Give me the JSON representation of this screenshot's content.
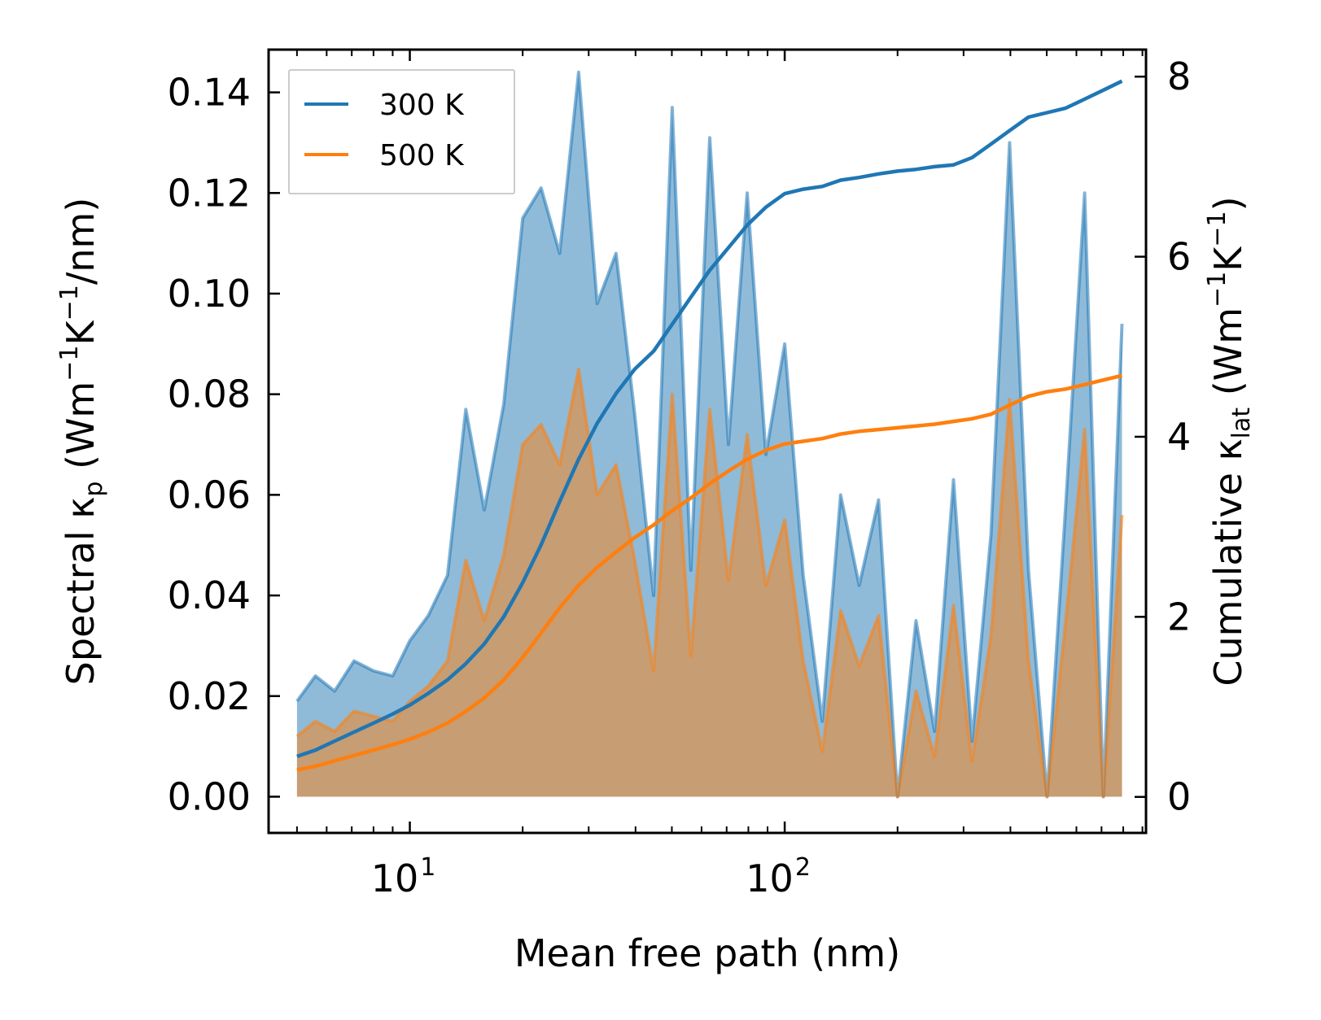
{
  "chart_data": {
    "type": "line",
    "xlabel": "Mean free path (nm)",
    "xscale": "log",
    "xlim": [
      4.2,
      920
    ],
    "x_ticks": [
      {
        "value": 10,
        "base": "10",
        "exp": "1"
      },
      {
        "value": 100,
        "base": "10",
        "exp": "2"
      }
    ],
    "left_axis": {
      "label_parts": [
        "Spectral κ",
        "p",
        " (Wm",
        "−1",
        "K",
        "−1",
        "/nm)"
      ],
      "ylim": [
        -0.0072,
        0.1485
      ],
      "ticks": [
        "0.00",
        "0.02",
        "0.04",
        "0.06",
        "0.08",
        "0.10",
        "0.12",
        "0.14"
      ]
    },
    "right_axis": {
      "label_parts": [
        "Cumulative κ",
        "lat",
        " (Wm",
        "−1",
        "K",
        "−1",
        ")"
      ],
      "ylim": [
        -0.4,
        8.3
      ],
      "ticks": [
        "0",
        "2",
        "4",
        "6",
        "8"
      ]
    },
    "legend": {
      "location": "upper-left",
      "entries": [
        {
          "label": "300 K",
          "color": "#1f77b4"
        },
        {
          "label": "500 K",
          "color": "#ff7f0e"
        }
      ]
    },
    "x": [
      5,
      5.6,
      6.3,
      7.1,
      8,
      9,
      10,
      11.2,
      12.6,
      14.1,
      15.8,
      17.8,
      20,
      22.4,
      25.1,
      28.2,
      31.6,
      35.5,
      39.8,
      44.7,
      50.1,
      56.2,
      63.1,
      70.8,
      79.4,
      89.1,
      100,
      112,
      126,
      141,
      158,
      178,
      200,
      224,
      251,
      282,
      316,
      355,
      398,
      447,
      501,
      562,
      631,
      708,
      794
    ],
    "series": [
      {
        "name": "300 K",
        "color": "#1f77b4",
        "spectral": [
          0.019,
          0.024,
          0.021,
          0.027,
          0.025,
          0.024,
          0.031,
          0.036,
          0.044,
          0.077,
          0.057,
          0.078,
          0.115,
          0.121,
          0.108,
          0.144,
          0.098,
          0.108,
          0.076,
          0.04,
          0.137,
          0.045,
          0.131,
          0.07,
          0.12,
          0.068,
          0.09,
          0.044,
          0.015,
          0.06,
          0.042,
          0.059,
          0.0,
          0.035,
          0.013,
          0.063,
          0.011,
          0.052,
          0.13,
          0.045,
          0.0,
          0.058,
          0.12,
          0.0,
          0.094
        ],
        "cumulative": [
          0.45,
          0.52,
          0.62,
          0.72,
          0.82,
          0.92,
          1.02,
          1.15,
          1.3,
          1.48,
          1.7,
          2.0,
          2.38,
          2.8,
          3.28,
          3.75,
          4.15,
          4.48,
          4.75,
          4.95,
          5.25,
          5.55,
          5.85,
          6.1,
          6.35,
          6.55,
          6.7,
          6.75,
          6.78,
          6.85,
          6.88,
          6.92,
          6.95,
          6.97,
          7.0,
          7.02,
          7.1,
          7.25,
          7.4,
          7.55,
          7.6,
          7.65,
          7.75,
          7.85,
          7.95
        ]
      },
      {
        "name": "500 K",
        "color": "#ff7f0e",
        "spectral": [
          0.012,
          0.015,
          0.013,
          0.017,
          0.016,
          0.015,
          0.019,
          0.022,
          0.027,
          0.047,
          0.035,
          0.048,
          0.07,
          0.074,
          0.066,
          0.085,
          0.06,
          0.066,
          0.047,
          0.025,
          0.08,
          0.028,
          0.077,
          0.043,
          0.072,
          0.042,
          0.055,
          0.027,
          0.009,
          0.037,
          0.026,
          0.036,
          0.0,
          0.021,
          0.008,
          0.038,
          0.007,
          0.032,
          0.079,
          0.027,
          0.0,
          0.035,
          0.073,
          0.0,
          0.056
        ],
        "cumulative": [
          0.3,
          0.34,
          0.4,
          0.46,
          0.52,
          0.58,
          0.64,
          0.72,
          0.82,
          0.95,
          1.1,
          1.3,
          1.55,
          1.82,
          2.1,
          2.35,
          2.55,
          2.72,
          2.88,
          3.02,
          3.18,
          3.32,
          3.48,
          3.62,
          3.75,
          3.85,
          3.92,
          3.95,
          3.98,
          4.03,
          4.06,
          4.08,
          4.1,
          4.12,
          4.14,
          4.17,
          4.2,
          4.25,
          4.35,
          4.45,
          4.5,
          4.53,
          4.58,
          4.63,
          4.68
        ]
      }
    ]
  }
}
